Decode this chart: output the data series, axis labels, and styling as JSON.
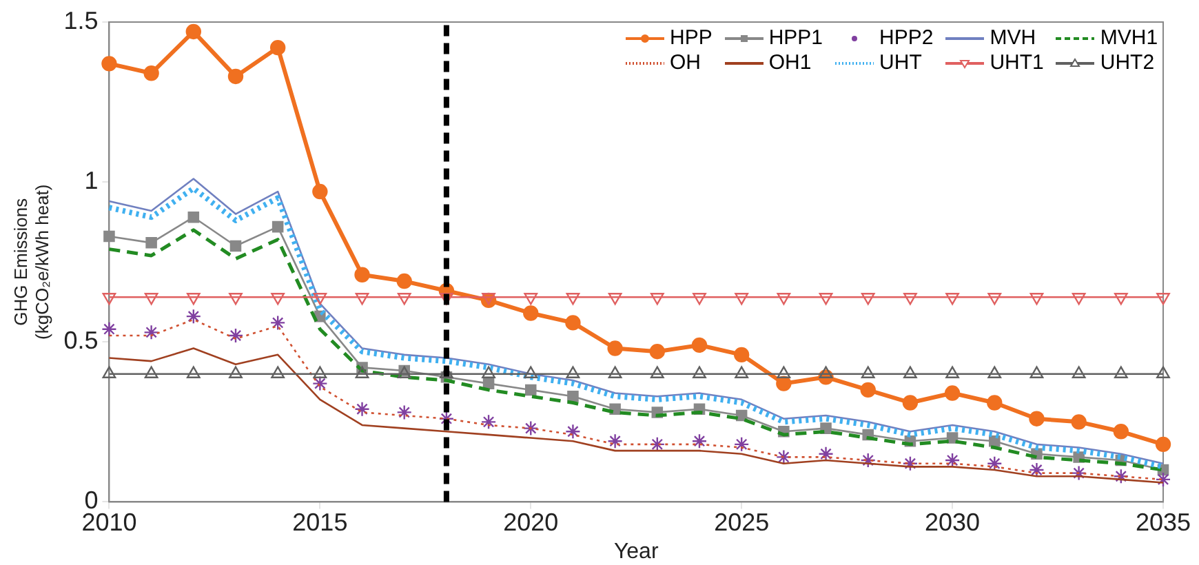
{
  "chart_data": {
    "type": "line",
    "xlabel": "Year",
    "ylabel": "GHG Emissions\n(kgCO₂e/kWh heat)",
    "x": [
      2010,
      2011,
      2012,
      2013,
      2014,
      2015,
      2016,
      2017,
      2018,
      2019,
      2020,
      2021,
      2022,
      2023,
      2024,
      2025,
      2026,
      2027,
      2028,
      2029,
      2030,
      2031,
      2032,
      2033,
      2034,
      2035
    ],
    "xlim": [
      2010,
      2035
    ],
    "xticks": [
      2010,
      2015,
      2020,
      2025,
      2030,
      2035
    ],
    "ylim": [
      0,
      1.5
    ],
    "yticks": [
      0,
      0.5,
      1,
      1.5
    ],
    "grid": false,
    "legend": "top right",
    "series": [
      {
        "name": "HPP",
        "color": "#f07020",
        "marker": "circle",
        "line_style": "solid",
        "values": [
          1.37,
          1.34,
          1.47,
          1.33,
          1.42,
          0.97,
          0.71,
          0.69,
          0.66,
          0.63,
          0.59,
          0.56,
          0.48,
          0.47,
          0.49,
          0.46,
          0.37,
          0.39,
          0.35,
          0.31,
          0.34,
          0.31,
          0.26,
          0.25,
          0.22,
          0.18
        ]
      },
      {
        "name": "HPP1",
        "color": "#888888",
        "marker": "square",
        "line_style": "solid",
        "values": [
          0.83,
          0.81,
          0.89,
          0.8,
          0.86,
          0.58,
          0.42,
          0.41,
          0.39,
          0.37,
          0.35,
          0.33,
          0.29,
          0.28,
          0.29,
          0.27,
          0.22,
          0.23,
          0.21,
          0.19,
          0.2,
          0.19,
          0.15,
          0.14,
          0.13,
          0.1
        ]
      },
      {
        "name": "HPP2",
        "type": "scatter",
        "color": "#8040a0",
        "marker": "cross",
        "values": [
          0.54,
          0.53,
          0.58,
          0.52,
          0.56,
          0.37,
          0.29,
          0.28,
          0.26,
          0.25,
          0.23,
          0.22,
          0.19,
          0.18,
          0.19,
          0.18,
          0.14,
          0.15,
          0.13,
          0.12,
          0.13,
          0.12,
          0.1,
          0.09,
          0.08,
          0.07
        ]
      },
      {
        "name": "MVH",
        "color": "#7080c0",
        "marker": "none",
        "line_style": "solid",
        "values": [
          0.94,
          0.91,
          1.01,
          0.9,
          0.97,
          0.62,
          0.48,
          0.46,
          0.45,
          0.43,
          0.4,
          0.38,
          0.34,
          0.33,
          0.34,
          0.32,
          0.26,
          0.27,
          0.25,
          0.22,
          0.24,
          0.22,
          0.18,
          0.17,
          0.15,
          0.12
        ]
      },
      {
        "name": "MVH1",
        "color": "#228b22",
        "marker": "none",
        "line_style": "dashed",
        "values": [
          0.79,
          0.77,
          0.85,
          0.76,
          0.82,
          0.54,
          0.41,
          0.39,
          0.38,
          0.35,
          0.33,
          0.31,
          0.28,
          0.27,
          0.28,
          0.26,
          0.21,
          0.22,
          0.2,
          0.18,
          0.19,
          0.17,
          0.14,
          0.13,
          0.12,
          0.1
        ]
      },
      {
        "name": "OH",
        "color": "#d05030",
        "marker": "none",
        "line_style": "dotted",
        "values": [
          0.52,
          0.52,
          0.57,
          0.51,
          0.55,
          0.36,
          0.28,
          0.27,
          0.26,
          0.24,
          0.23,
          0.21,
          0.18,
          0.18,
          0.18,
          0.17,
          0.14,
          0.14,
          0.13,
          0.12,
          0.12,
          0.11,
          0.09,
          0.09,
          0.08,
          0.07
        ]
      },
      {
        "name": "OH1",
        "color": "#a04020",
        "marker": "none",
        "line_style": "solid",
        "values": [
          0.45,
          0.44,
          0.48,
          0.43,
          0.46,
          0.32,
          0.24,
          0.23,
          0.22,
          0.21,
          0.2,
          0.19,
          0.16,
          0.16,
          0.16,
          0.15,
          0.12,
          0.13,
          0.12,
          0.11,
          0.11,
          0.1,
          0.08,
          0.08,
          0.07,
          0.06
        ]
      },
      {
        "name": "UHT",
        "color": "#40b0f0",
        "marker": "none",
        "line_style": "dotted",
        "values": [
          0.92,
          0.89,
          0.98,
          0.88,
          0.95,
          0.6,
          0.47,
          0.45,
          0.44,
          0.42,
          0.39,
          0.37,
          0.33,
          0.32,
          0.33,
          0.31,
          0.25,
          0.26,
          0.24,
          0.21,
          0.23,
          0.21,
          0.17,
          0.16,
          0.14,
          0.11
        ]
      },
      {
        "name": "UHT1",
        "color": "#e06060",
        "marker": "triangle-down",
        "line_style": "solid",
        "values": [
          0.64,
          0.64,
          0.64,
          0.64,
          0.64,
          0.64,
          0.64,
          0.64,
          0.64,
          0.64,
          0.64,
          0.64,
          0.64,
          0.64,
          0.64,
          0.64,
          0.64,
          0.64,
          0.64,
          0.64,
          0.64,
          0.64,
          0.64,
          0.64,
          0.64,
          0.64
        ]
      },
      {
        "name": "UHT2",
        "color": "#606060",
        "marker": "triangle",
        "line_style": "solid",
        "values": [
          0.4,
          0.4,
          0.4,
          0.4,
          0.4,
          0.4,
          0.4,
          0.4,
          0.4,
          0.4,
          0.4,
          0.4,
          0.4,
          0.4,
          0.4,
          0.4,
          0.4,
          0.4,
          0.4,
          0.4,
          0.4,
          0.4,
          0.4,
          0.4,
          0.4,
          0.4
        ]
      }
    ],
    "ref_lines": [
      {
        "axis": "x",
        "value": 2018,
        "color": "#000000",
        "line_style": "dashed"
      }
    ]
  }
}
